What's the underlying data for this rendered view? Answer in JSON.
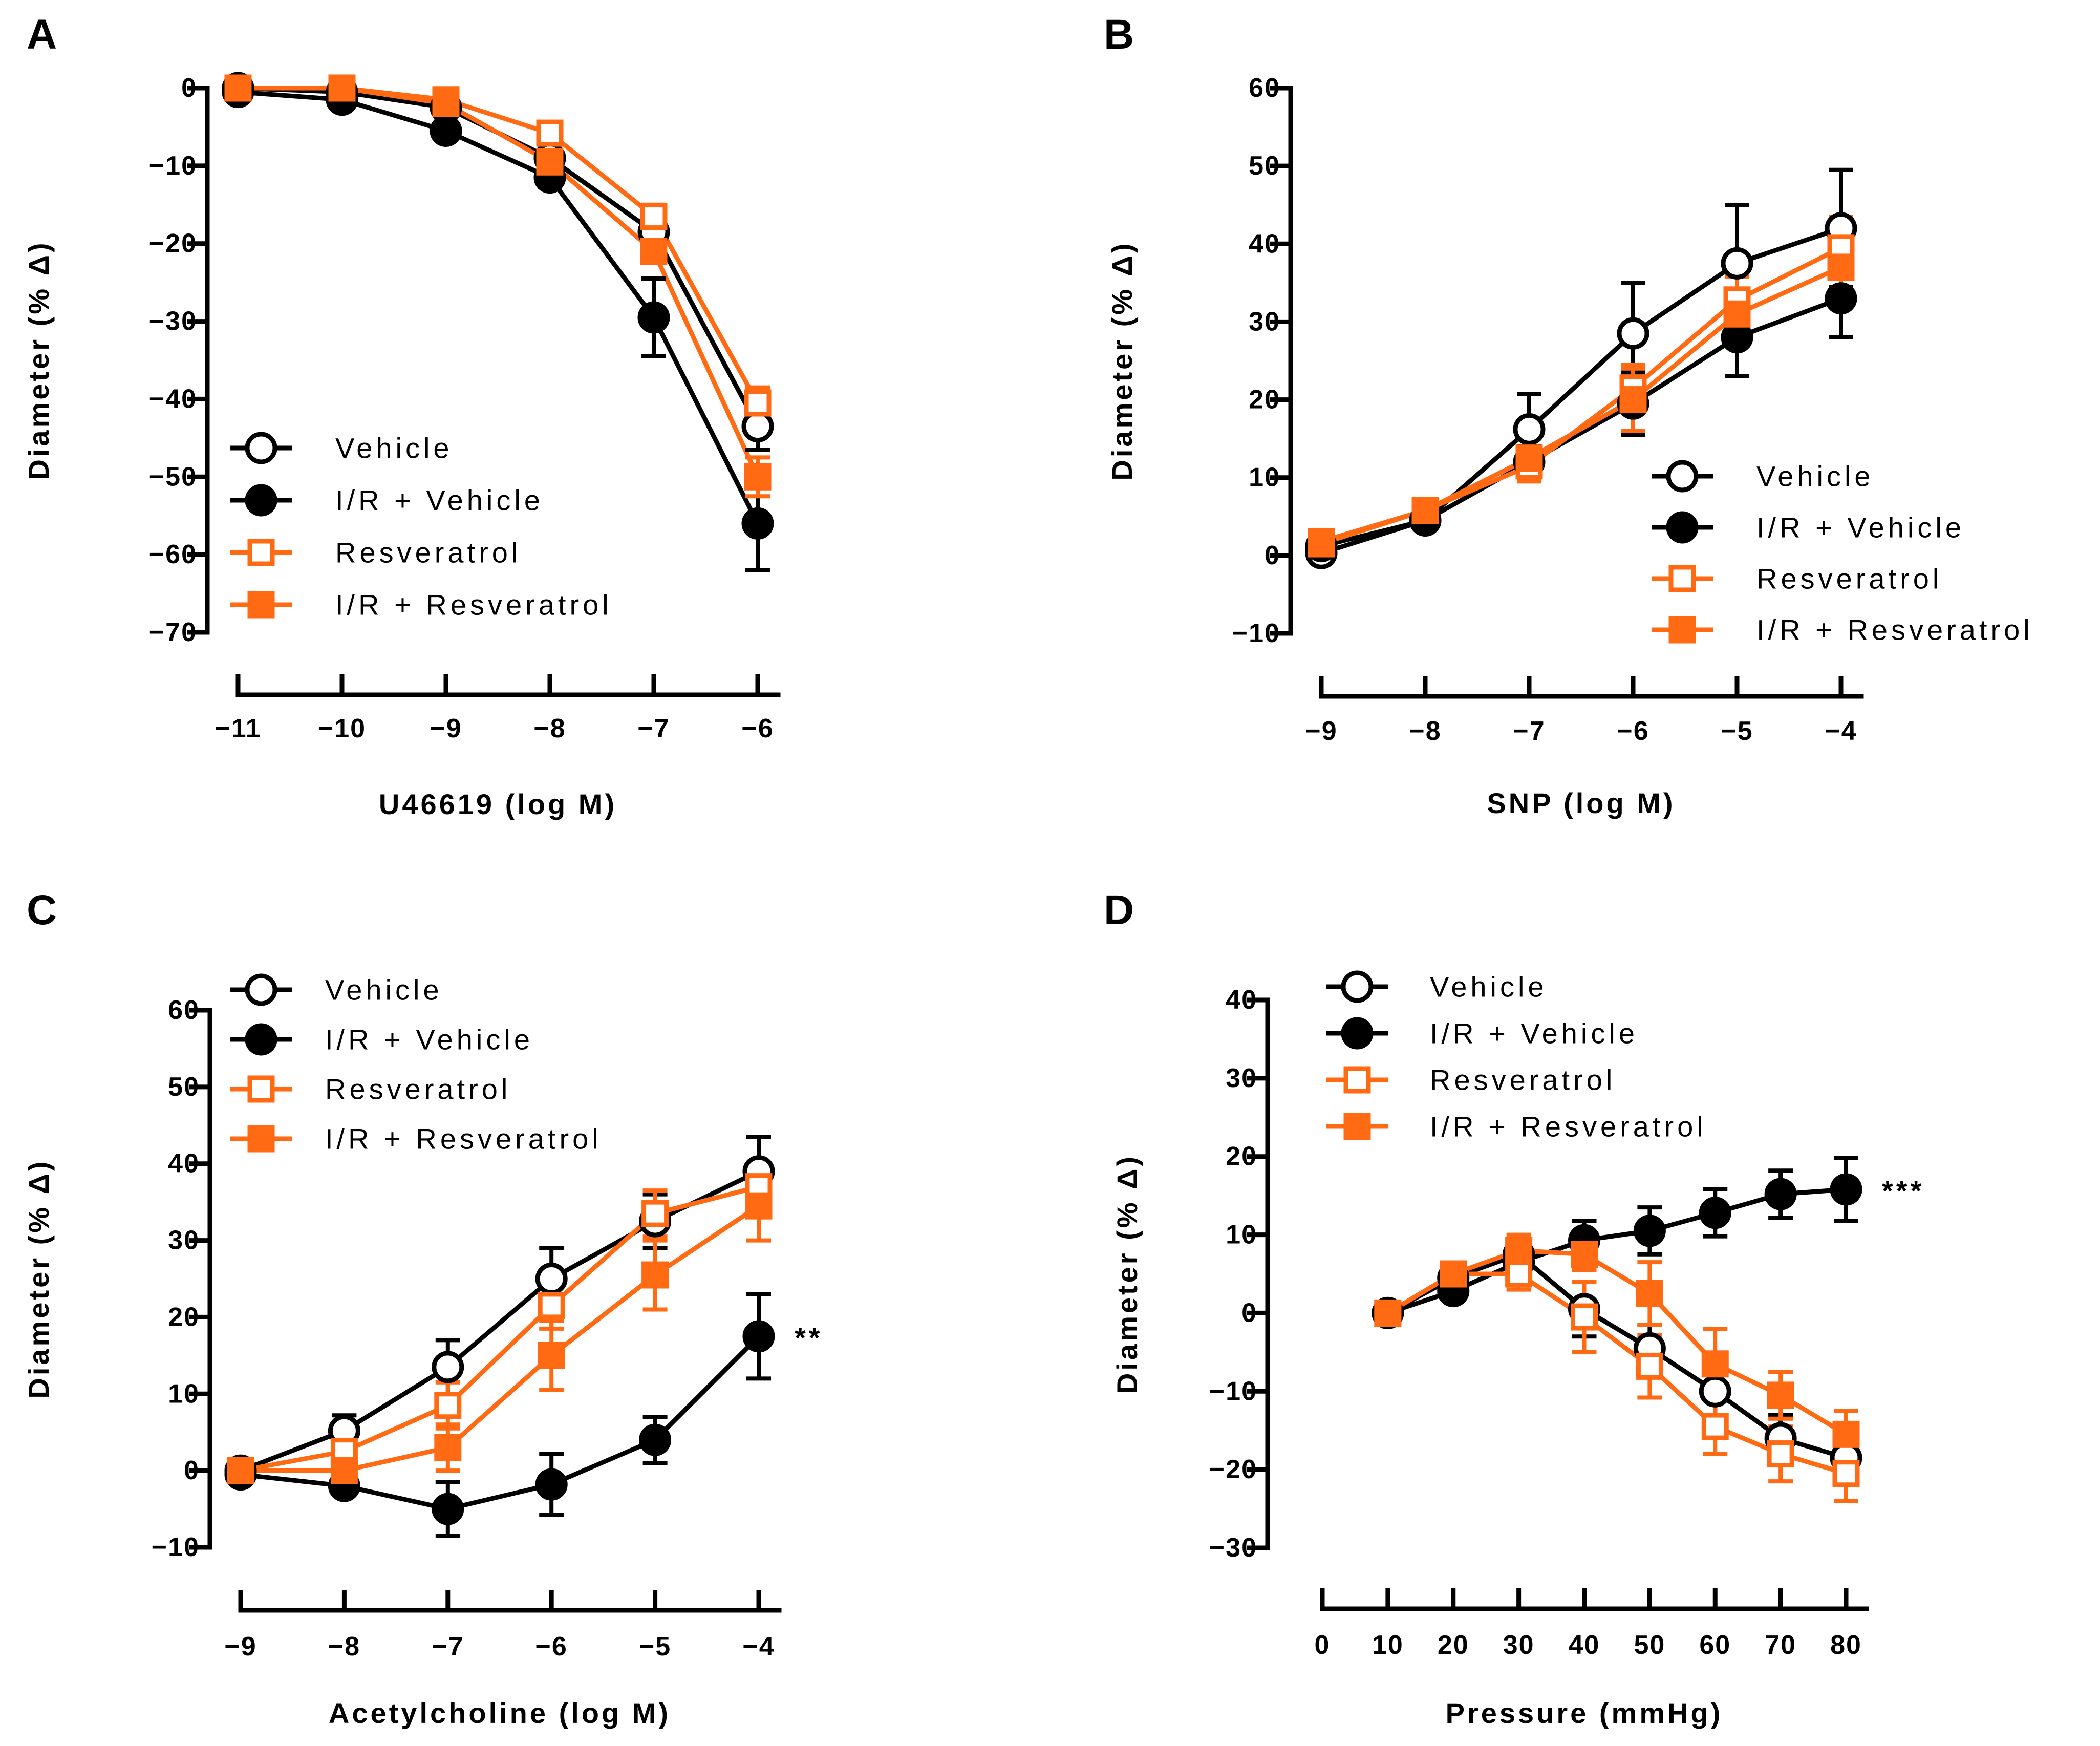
{
  "style": {
    "black": "#000000",
    "orange": "#FF6A13",
    "white": "#FFFFFF"
  },
  "chart_data": [
    {
      "panel": "A",
      "type": "line",
      "xlabel": "U46619 (log M)",
      "ylabel": "Diameter (% Δ)",
      "xlim": [
        -11,
        -6
      ],
      "ylim": [
        -70,
        0
      ],
      "xticks": [
        -11,
        -10,
        -9,
        -8,
        -7,
        -6
      ],
      "yticks": [
        0,
        -10,
        -20,
        -30,
        -40,
        -50,
        -60,
        -70
      ],
      "legend_position": "lower-left",
      "x": [
        -11,
        -10,
        -9,
        -8,
        -7,
        -6
      ],
      "series": [
        {
          "name": "Vehicle",
          "marker": "circle-open",
          "values": [
            0,
            -0.5,
            -2.5,
            -9,
            -18.5,
            -43.5
          ],
          "errors": [
            0,
            0.3,
            0.5,
            1,
            1.5,
            3
          ]
        },
        {
          "name": "I/R + Vehicle",
          "marker": "circle-filled",
          "values": [
            -0.5,
            -1.5,
            -5.5,
            -11.5,
            -29.5,
            -56
          ],
          "errors": [
            0,
            0.5,
            0.8,
            1.2,
            5,
            6
          ]
        },
        {
          "name": "Resveratrol",
          "marker": "square-open",
          "values": [
            0,
            0,
            -1.5,
            -5.8,
            -16.5,
            -40.5
          ],
          "errors": [
            0,
            0.3,
            0.5,
            1,
            1.5,
            2
          ]
        },
        {
          "name": "I/R + Resveratrol",
          "marker": "square-filled",
          "values": [
            0,
            0,
            -2,
            -9.5,
            -21,
            -50
          ],
          "errors": [
            0,
            0.3,
            0.5,
            1,
            1.5,
            2.5
          ]
        }
      ]
    },
    {
      "panel": "B",
      "type": "line",
      "xlabel": "SNP (log M)",
      "ylabel": "Diameter (% Δ)",
      "xlim": [
        -9,
        -4
      ],
      "ylim": [
        -10,
        60
      ],
      "xticks": [
        -9,
        -8,
        -7,
        -6,
        -5,
        -4
      ],
      "yticks": [
        60,
        50,
        40,
        30,
        20,
        10,
        0,
        -10
      ],
      "legend_position": "lower-right",
      "x": [
        -9,
        -8,
        -7,
        -6,
        -5,
        -4
      ],
      "series": [
        {
          "name": "Vehicle",
          "marker": "circle-open",
          "values": [
            0.3,
            4.5,
            16.2,
            28.5,
            37.5,
            42
          ],
          "errors": [
            0.3,
            0.5,
            4.5,
            6.5,
            7.5,
            7.5
          ]
        },
        {
          "name": "I/R + Vehicle",
          "marker": "circle-filled",
          "values": [
            1.2,
            4.5,
            12,
            19.5,
            28,
            33
          ],
          "errors": [
            0.3,
            0.5,
            2,
            4,
            5,
            5
          ]
        },
        {
          "name": "Resveratrol",
          "marker": "square-open",
          "values": [
            1.5,
            5.8,
            11.5,
            21.5,
            32.8,
            39.5
          ],
          "errors": [
            0.3,
            0.5,
            2,
            3,
            3,
            4
          ]
        },
        {
          "name": "I/R + Resveratrol",
          "marker": "square-filled",
          "values": [
            1.8,
            5.8,
            12.5,
            20,
            31,
            37
          ],
          "errors": [
            0.3,
            0.5,
            2.5,
            4,
            3,
            4
          ]
        }
      ]
    },
    {
      "panel": "C",
      "type": "line",
      "xlabel": "Acetylcholine (log M)",
      "ylabel": "Diameter (% Δ)",
      "xlim": [
        -9,
        -4
      ],
      "ylim": [
        -10,
        60
      ],
      "xticks": [
        -9,
        -8,
        -7,
        -6,
        -5,
        -4
      ],
      "yticks": [
        60,
        50,
        40,
        30,
        20,
        10,
        0,
        -10
      ],
      "legend_position": "top-left",
      "annotation": {
        "text": "**",
        "x": -4
      },
      "x": [
        -9,
        -8,
        -7,
        -6,
        -5,
        -4
      ],
      "series": [
        {
          "name": "Vehicle",
          "marker": "circle-open",
          "values": [
            0,
            5.2,
            13.5,
            25,
            32.5,
            39
          ],
          "errors": [
            0.3,
            2,
            3.5,
            4,
            3.5,
            4.5
          ]
        },
        {
          "name": "I/R + Vehicle",
          "marker": "circle-filled",
          "values": [
            -0.5,
            -2,
            -5,
            -1.8,
            4,
            17.5
          ],
          "errors": [
            0.3,
            0.5,
            3.5,
            4,
            3,
            5.5
          ]
        },
        {
          "name": "Resveratrol",
          "marker": "square-open",
          "values": [
            0,
            2.5,
            8.5,
            21.5,
            33.5,
            37
          ],
          "errors": [
            0.3,
            2,
            3,
            3,
            3,
            3
          ]
        },
        {
          "name": "I/R + Resveratrol",
          "marker": "square-filled",
          "values": [
            0,
            0,
            3,
            15,
            25.5,
            34.5
          ],
          "errors": [
            0.3,
            0.5,
            3,
            4.5,
            4.5,
            4.5
          ]
        }
      ]
    },
    {
      "panel": "D",
      "type": "line",
      "xlabel": "Pressure (mmHg)",
      "ylabel": "Diameter (% Δ)",
      "xlim": [
        0,
        80
      ],
      "ylim": [
        -30,
        40
      ],
      "xticks": [
        0,
        10,
        20,
        30,
        40,
        50,
        60,
        70,
        80
      ],
      "yticks": [
        40,
        30,
        20,
        10,
        0,
        -10,
        -20,
        -30
      ],
      "legend_position": "top-left",
      "annotation": {
        "text": "***",
        "x": 80
      },
      "x": [
        10,
        20,
        30,
        40,
        50,
        60,
        70,
        80
      ],
      "series": [
        {
          "name": "Vehicle",
          "marker": "circle-open",
          "values": [
            0,
            4.5,
            7.5,
            0.5,
            -4.5,
            -10,
            -16,
            -18.5
          ],
          "errors": [
            0.3,
            1,
            2,
            3.5,
            3,
            3,
            3,
            3
          ]
        },
        {
          "name": "I/R + Vehicle",
          "marker": "circle-filled",
          "values": [
            0,
            2.8,
            6.5,
            9.3,
            10.5,
            12.8,
            15.2,
            15.8
          ],
          "errors": [
            0.3,
            1,
            2,
            2.5,
            3,
            3,
            3,
            4
          ]
        },
        {
          "name": "Resveratrol",
          "marker": "square-open",
          "values": [
            0,
            5,
            5,
            -0.5,
            -6.8,
            -14.5,
            -18,
            -20.5
          ],
          "errors": [
            0.3,
            1,
            2,
            4.5,
            4,
            3.5,
            3.5,
            3.5
          ]
        },
        {
          "name": "I/R + Resveratrol",
          "marker": "square-filled",
          "values": [
            0,
            5,
            8,
            7.5,
            2.5,
            -6.5,
            -10.5,
            -15.5
          ],
          "errors": [
            0.3,
            1,
            2,
            2,
            4,
            4.5,
            3,
            3
          ]
        }
      ]
    }
  ]
}
